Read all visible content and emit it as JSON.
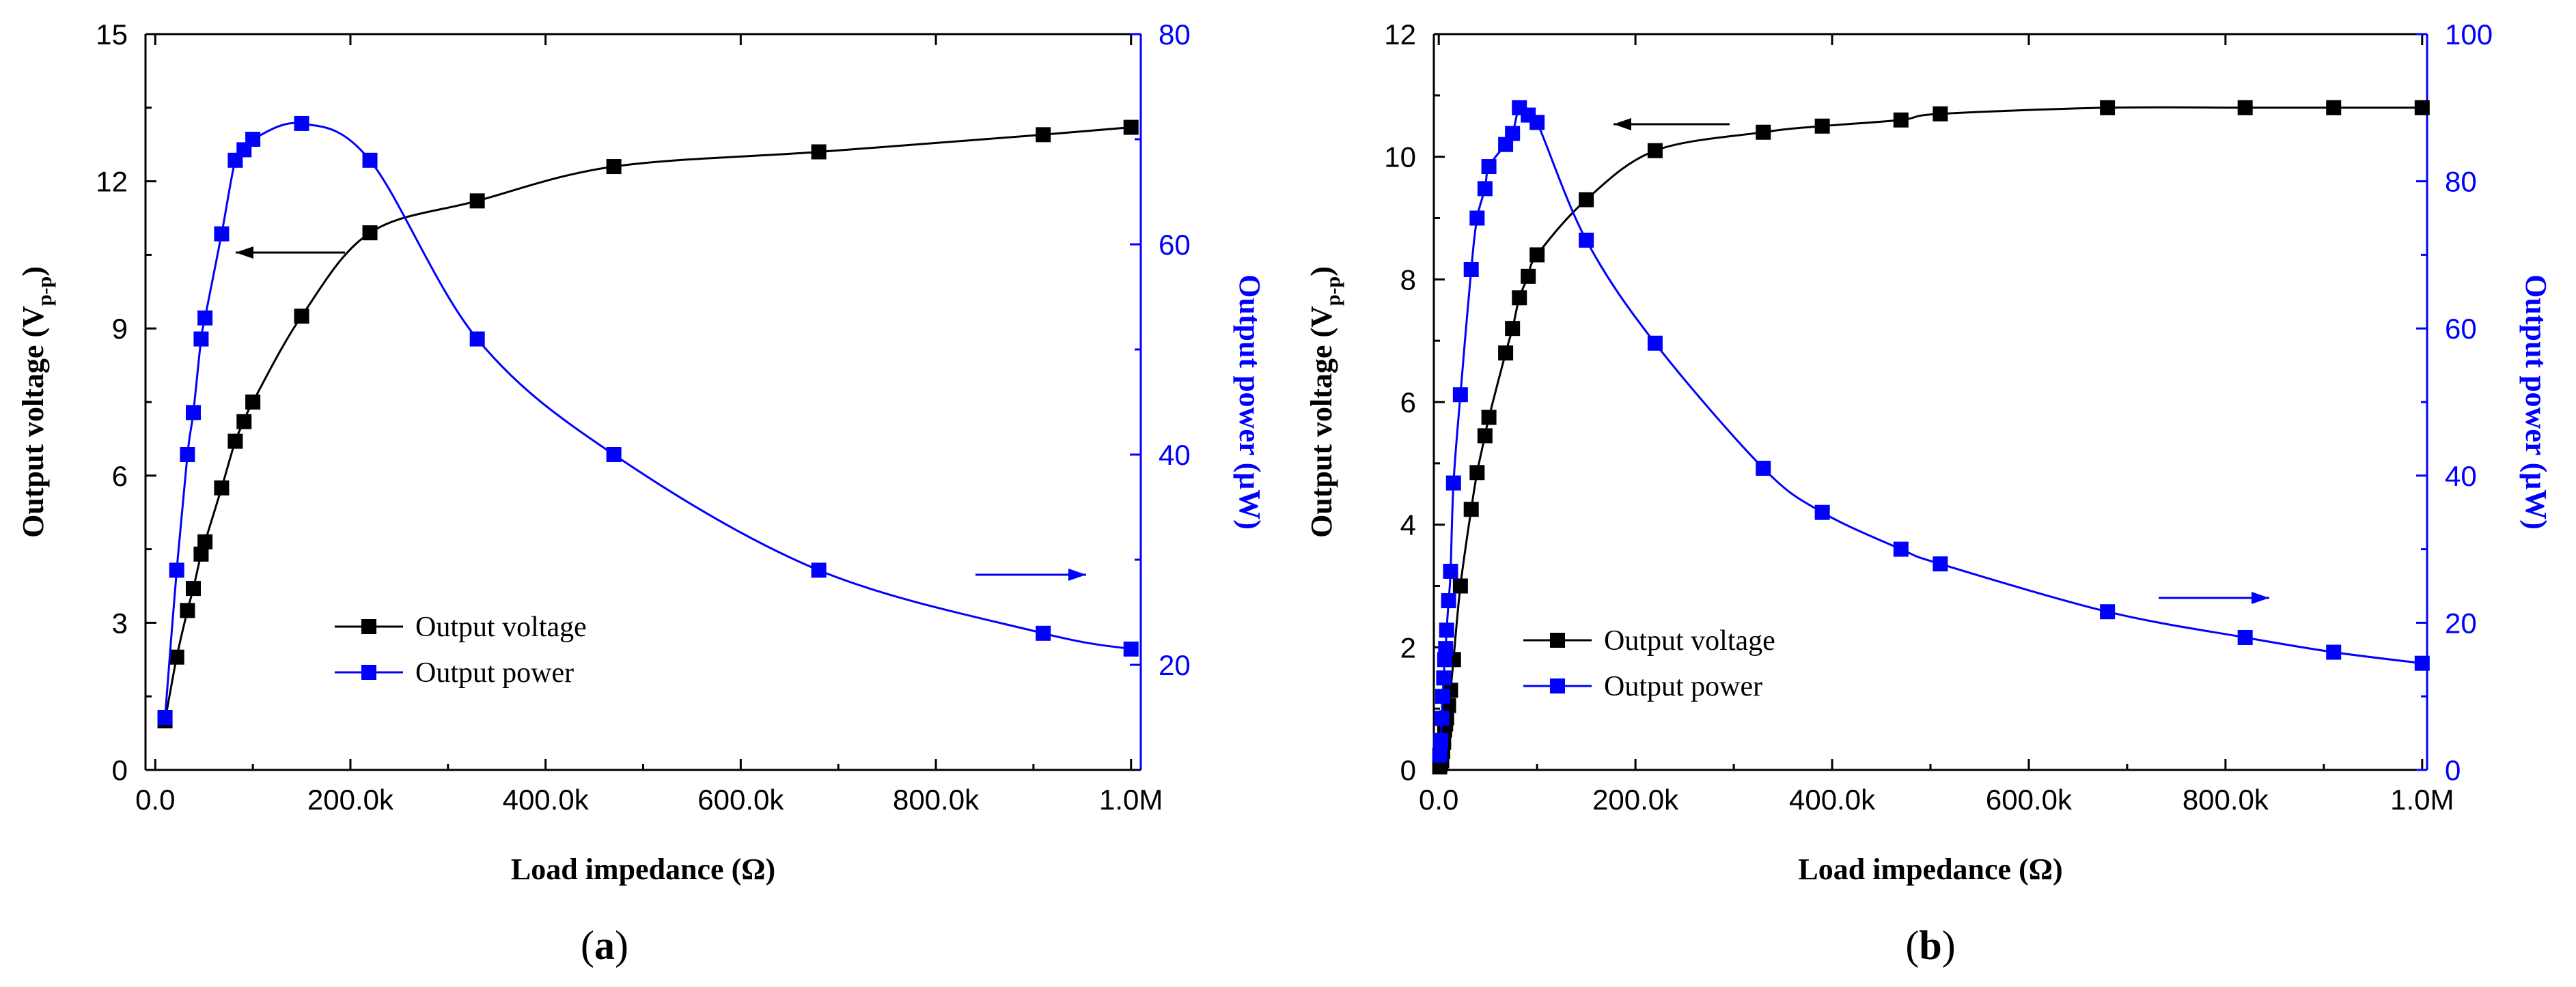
{
  "chart_data": [
    {
      "type": "line",
      "panel_label": "(a)",
      "panel_letter": "a",
      "xlabel": "Load impedance (Ω)",
      "ylabel_left": "Output voltage (V",
      "ylabel_left_sub": "p-p",
      "ylabel_left_close": ")",
      "ylabel_right": "Output power (μW)",
      "xlim": [
        -10000,
        1010000
      ],
      "ylim_left": [
        0,
        15
      ],
      "ylim_right": [
        10,
        80
      ],
      "x_ticks": [
        0,
        200000,
        400000,
        600000,
        800000,
        1000000
      ],
      "x_tick_labels": [
        "0.0",
        "200.0k",
        "400.0k",
        "600.0k",
        "800.0k",
        "1.0M"
      ],
      "y_left_ticks": [
        0,
        3,
        6,
        9,
        12,
        15
      ],
      "y_left_tick_labels": [
        "0",
        "3",
        "6",
        "9",
        "12",
        "15"
      ],
      "y_right_ticks": [
        20,
        40,
        60,
        80
      ],
      "y_right_tick_labels": [
        "20",
        "40",
        "60",
        "80"
      ],
      "legend": [
        "Output voltage",
        "Output power"
      ],
      "series": [
        {
          "name": "Output voltage",
          "axis": "left",
          "color": "#000000",
          "x": [
            10000,
            22000,
            33000,
            39000,
            47000,
            51000,
            68000,
            82000,
            91000,
            100000,
            150000,
            220000,
            330000,
            470000,
            680000,
            910000,
            1000000
          ],
          "y": [
            1.0,
            2.3,
            3.25,
            3.7,
            4.4,
            4.65,
            5.75,
            6.7,
            7.1,
            7.5,
            9.25,
            10.95,
            11.6,
            12.3,
            12.6,
            12.95,
            13.1
          ]
        },
        {
          "name": "Output power",
          "axis": "right",
          "color": "#0000ff",
          "x": [
            10000,
            22000,
            33000,
            39000,
            47000,
            51000,
            68000,
            82000,
            91000,
            100000,
            150000,
            220000,
            330000,
            470000,
            680000,
            910000,
            1000000
          ],
          "y": [
            15.0,
            29.0,
            40.0,
            44.0,
            51.0,
            53.0,
            61.0,
            68.0,
            69.0,
            70.0,
            71.5,
            68.0,
            51.0,
            40.0,
            29.0,
            23.0,
            21.5
          ]
        }
      ],
      "annotations": [
        "arrow pointing left toward voltage curve",
        "arrow pointing right toward power axis"
      ]
    },
    {
      "type": "line",
      "panel_label": "(b)",
      "panel_letter": "b",
      "xlabel": "Load impedance (Ω)",
      "ylabel_left": "Output voltage (V",
      "ylabel_left_sub": "p-p",
      "ylabel_left_close": ")",
      "ylabel_right": "Output power (μW)",
      "xlim": [
        -5000,
        1005000
      ],
      "ylim_left": [
        0,
        12
      ],
      "ylim_right": [
        0,
        100
      ],
      "x_ticks": [
        0,
        200000,
        400000,
        600000,
        800000,
        1000000
      ],
      "x_tick_labels": [
        "0.0",
        "200.0k",
        "400.0k",
        "600.0k",
        "800.0k",
        "1.0M"
      ],
      "y_left_ticks": [
        0,
        2,
        4,
        6,
        8,
        10,
        12
      ],
      "y_left_tick_labels": [
        "0",
        "2",
        "4",
        "6",
        "8",
        "10",
        "12"
      ],
      "y_right_ticks": [
        0,
        20,
        40,
        60,
        80,
        100
      ],
      "y_right_tick_labels": [
        "0",
        "20",
        "40",
        "60",
        "80",
        "100"
      ],
      "legend": [
        "Output voltage",
        "Output power"
      ],
      "series": [
        {
          "name": "Output voltage",
          "axis": "left",
          "color": "#000000",
          "x": [
            1000,
            2000,
            3000,
            4000,
            5000,
            6000,
            7000,
            8000,
            10000,
            12000,
            15000,
            22000,
            33000,
            39000,
            47000,
            51000,
            68000,
            75000,
            82000,
            91000,
            100000,
            150000,
            220000,
            330000,
            390000,
            470000,
            510000,
            680000,
            820000,
            910000,
            1000000
          ],
          "y": [
            0.05,
            0.1,
            0.15,
            0.3,
            0.45,
            0.65,
            0.75,
            0.85,
            1.05,
            1.3,
            1.8,
            3.0,
            4.25,
            4.85,
            5.45,
            5.75,
            6.8,
            7.2,
            7.7,
            8.05,
            8.4,
            9.3,
            10.1,
            10.4,
            10.5,
            10.6,
            10.7,
            10.8,
            10.8,
            10.8,
            10.8
          ]
        },
        {
          "name": "Output power",
          "axis": "right",
          "color": "#0000ff",
          "x": [
            1000,
            2000,
            3000,
            4000,
            5000,
            6000,
            7000,
            8000,
            10000,
            12000,
            15000,
            22000,
            33000,
            39000,
            47000,
            51000,
            68000,
            75000,
            82000,
            91000,
            100000,
            150000,
            220000,
            330000,
            390000,
            470000,
            510000,
            680000,
            820000,
            910000,
            1000000
          ],
          "y": [
            2.0,
            4.0,
            7.0,
            10.0,
            12.5,
            15.0,
            16.5,
            19.0,
            23.0,
            27.0,
            39.0,
            51.0,
            68.0,
            75.0,
            79.0,
            82.0,
            85.0,
            86.5,
            90.0,
            89.0,
            88.0,
            72.0,
            58.0,
            41.0,
            35.0,
            30.0,
            28.0,
            21.5,
            18.0,
            16.0,
            14.5
          ]
        }
      ],
      "annotations": [
        "arrow pointing left toward voltage curve",
        "arrow pointing right toward power axis"
      ]
    }
  ]
}
